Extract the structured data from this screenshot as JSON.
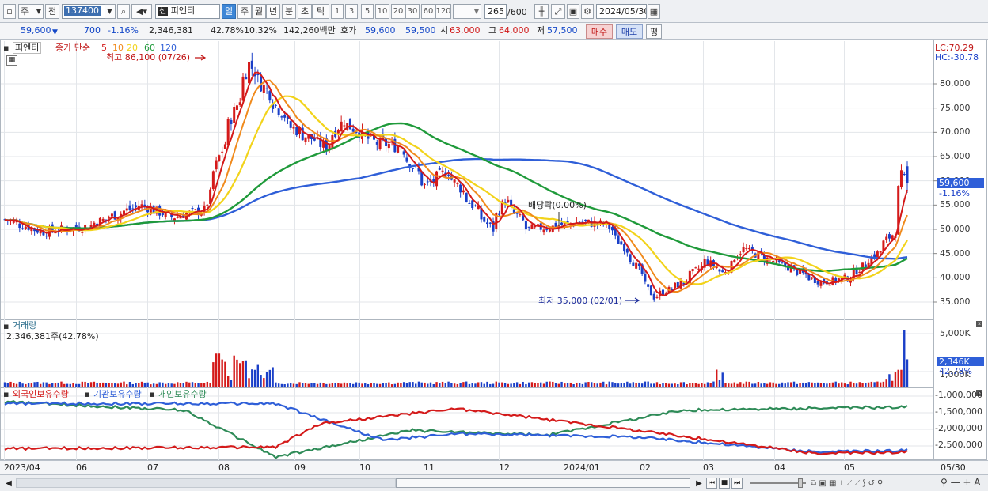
{
  "toolbar": {
    "mode_button": "주",
    "prev_button": "전",
    "stock_code": "137400",
    "stock_badge": "신",
    "stock_name": "피엔티",
    "periods": [
      "일",
      "주",
      "월",
      "년",
      "분",
      "초",
      "틱"
    ],
    "selected_period": "일",
    "intervals": [
      "1",
      "3",
      "5",
      "10",
      "20",
      "30",
      "60",
      "120"
    ],
    "count": "265",
    "count_total": "/600",
    "date": "2024/05/30"
  },
  "quote": {
    "price": "59,600",
    "change": "700",
    "change_pct": "-1.16%",
    "volume": "2,346,381",
    "volume_ratio": "42.78%",
    "turnover": "10.32%",
    "amount": "142,260백만",
    "hoga_label": "호가",
    "ask": "59,600",
    "bid": "59,500",
    "open_label": "시",
    "open": "63,000",
    "high_label": "고",
    "high": "64,000",
    "low_label": "저",
    "low": "57,500",
    "buy_button": "매수",
    "sell_button": "매도",
    "eval_button": "평"
  },
  "price_panel": {
    "legend_name": "피엔티",
    "legend_ma": "종가 단순",
    "ma_periods": [
      {
        "label": "5",
        "color": "#d41a1a"
      },
      {
        "label": "10",
        "color": "#f08a1c"
      },
      {
        "label": "20",
        "color": "#f2d31a"
      },
      {
        "label": "60",
        "color": "#1f9a3a"
      },
      {
        "label": "120",
        "color": "#2f5fd8"
      }
    ],
    "high_annotation": "최고 86,100 (07/26)",
    "low_annotation": "최저 35,000 (02/01)",
    "dividend_annotation": "배당락(0.00%)",
    "lc": "LC:70.29",
    "hc": "HC:-30.78",
    "price_tag": "59,600",
    "price_tag_pct": "-1.16%",
    "y_ticks": [
      "80,000",
      "75,000",
      "70,000",
      "65,000",
      "60,000",
      "55,000",
      "50,000",
      "45,000",
      "40,000",
      "35,000"
    ]
  },
  "volume_panel": {
    "title": "거래량",
    "value": "2,346,381주(42.78%)",
    "y_ticks": [
      "5,000K",
      "1,000K"
    ],
    "tag": "2,346K",
    "tag_pct": "42.78%"
  },
  "holdings_panel": {
    "legends": [
      {
        "label": "외국인보유수량",
        "color": "#d41a1a"
      },
      {
        "label": "기관보유수량",
        "color": "#2f5fd8"
      },
      {
        "label": "개인보유수량",
        "color": "#2e8b57"
      }
    ],
    "y_ticks": [
      "-1,000,000",
      "-1,500,000",
      "-2,000,000",
      "-2,500,000"
    ]
  },
  "x_axis": [
    "2023/04",
    "06",
    "07",
    "08",
    "09",
    "10",
    "11",
    "12",
    "2024/01",
    "02",
    "03",
    "04",
    "05"
  ],
  "x_axis_end": "05/30",
  "colors": {
    "up": "#d41a1a",
    "down": "#1a3fc8",
    "ma5": "#d41a1a",
    "ma10": "#f08a1c",
    "ma20": "#f2d31a",
    "ma60": "#1f9a3a",
    "ma120": "#2f5fd8",
    "price_tag": "#2f5fd8"
  },
  "chart_data": {
    "type": "candlestick",
    "price_range": [
      33000,
      86500
    ],
    "anchors": [
      [
        "2023-04-03",
        52000
      ],
      [
        "2023-04-20",
        49500
      ],
      [
        "2023-05-10",
        50500
      ],
      [
        "2023-06-05",
        55000
      ],
      [
        "2023-06-20",
        52500
      ],
      [
        "2023-07-05",
        54000
      ],
      [
        "2023-07-12",
        65000
      ],
      [
        "2023-07-21",
        77000
      ],
      [
        "2023-07-26",
        84000
      ],
      [
        "2023-08-01",
        80000
      ],
      [
        "2023-08-15",
        71000
      ],
      [
        "2023-08-31",
        67000
      ],
      [
        "2023-09-08",
        72500
      ],
      [
        "2023-09-22",
        68000
      ],
      [
        "2023-10-05",
        67000
      ],
      [
        "2023-10-17",
        59000
      ],
      [
        "2023-10-27",
        62000
      ],
      [
        "2023-11-08",
        55000
      ],
      [
        "2023-11-17",
        50000
      ],
      [
        "2023-11-23",
        56000
      ],
      [
        "2023-12-04",
        50000
      ],
      [
        "2023-12-15",
        50500
      ],
      [
        "2023-12-28",
        51500
      ],
      [
        "2024-01-10",
        51000
      ],
      [
        "2024-01-22",
        44000
      ],
      [
        "2024-02-01",
        36000
      ],
      [
        "2024-02-15",
        39000
      ],
      [
        "2024-02-26",
        43500
      ],
      [
        "2024-03-05",
        41000
      ],
      [
        "2024-03-14",
        46000
      ],
      [
        "2024-03-28",
        43500
      ],
      [
        "2024-04-10",
        41000
      ],
      [
        "2024-04-20",
        39000
      ],
      [
        "2024-05-03",
        40000
      ],
      [
        "2024-05-16",
        45000
      ],
      [
        "2024-05-24",
        49500
      ],
      [
        "2024-05-28",
        61000
      ],
      [
        "2024-05-30",
        59600
      ]
    ],
    "volume_max_label": "5,000K",
    "last_volume": 2346381,
    "holdings": {
      "foreign": [
        [
          0,
          -2550000
        ],
        [
          0.3,
          -2500000
        ],
        [
          0.35,
          -1800000
        ],
        [
          0.5,
          -1350000
        ],
        [
          0.7,
          -2000000
        ],
        [
          0.9,
          -2700000
        ],
        [
          1,
          -2650000
        ]
      ],
      "institution": [
        [
          0,
          -1200000
        ],
        [
          0.3,
          -1200000
        ],
        [
          0.42,
          -2300000
        ],
        [
          0.5,
          -2100000
        ],
        [
          0.7,
          -2200000
        ],
        [
          0.9,
          -2650000
        ],
        [
          1,
          -2600000
        ]
      ],
      "individual": [
        [
          0,
          -1150000
        ],
        [
          0.2,
          -1400000
        ],
        [
          0.3,
          -2800000
        ],
        [
          0.45,
          -2000000
        ],
        [
          0.6,
          -2150000
        ],
        [
          0.75,
          -1400000
        ],
        [
          1,
          -1300000
        ]
      ]
    }
  }
}
